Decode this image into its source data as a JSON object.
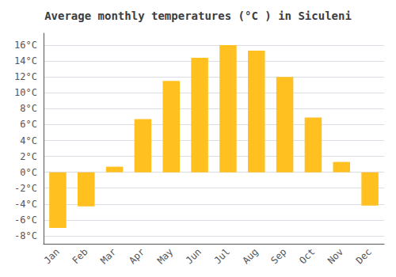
{
  "chart_data": {
    "type": "bar",
    "title": "Average monthly temperatures (°C ) in Siculeni",
    "categories": [
      "Jan",
      "Feb",
      "Mar",
      "Apr",
      "May",
      "Jun",
      "Jul",
      "Aug",
      "Sep",
      "Oct",
      "Nov",
      "Dec"
    ],
    "values": [
      -7.0,
      -4.3,
      0.7,
      6.7,
      11.5,
      14.4,
      16.0,
      15.3,
      12.0,
      6.9,
      1.3,
      -4.2
    ],
    "color": "#FFC020",
    "ylim": [
      -9.0,
      17.5
    ],
    "yticks": [
      {
        "value": -8,
        "label": "-8°C"
      },
      {
        "value": -6,
        "label": "-6°C"
      },
      {
        "value": -4,
        "label": "-4°C"
      },
      {
        "value": -2,
        "label": "-2°C"
      },
      {
        "value": 0,
        "label": "0°C"
      },
      {
        "value": 2,
        "label": "2°C"
      },
      {
        "value": 4,
        "label": "4°C"
      },
      {
        "value": 6,
        "label": "6°C"
      },
      {
        "value": 8,
        "label": "8°C"
      },
      {
        "value": 10,
        "label": "10°C"
      },
      {
        "value": 12,
        "label": "12°C"
      },
      {
        "value": 14,
        "label": "14°C"
      },
      {
        "value": 16,
        "label": "16°C"
      }
    ],
    "grid": true
  }
}
